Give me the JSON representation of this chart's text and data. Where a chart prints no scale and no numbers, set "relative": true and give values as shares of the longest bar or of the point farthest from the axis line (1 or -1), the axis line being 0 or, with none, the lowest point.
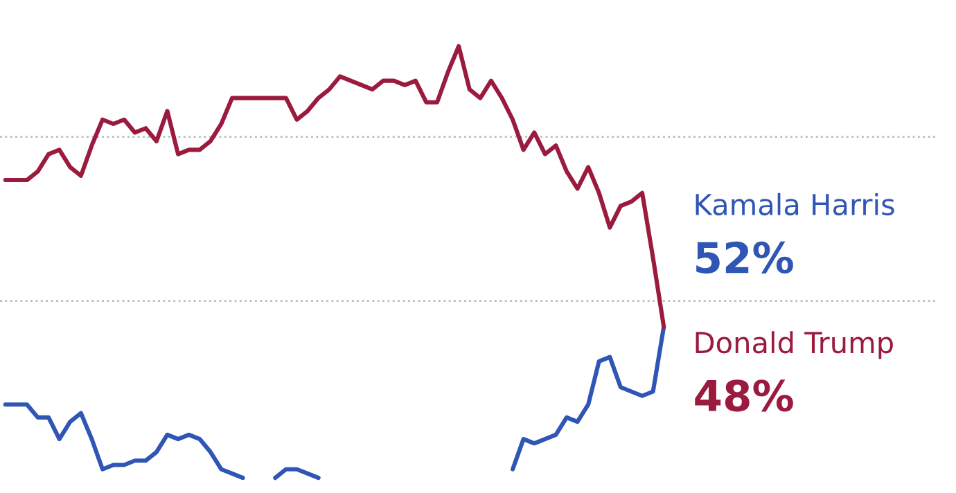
{
  "chart_data": {
    "type": "line",
    "relative": true,
    "legend": false,
    "categories": [
      null,
      null,
      null,
      null,
      null,
      null,
      null,
      null,
      null,
      null,
      null,
      null,
      null,
      null,
      null,
      null,
      null,
      null,
      null,
      null,
      null,
      null,
      null,
      null,
      null,
      null,
      null,
      null,
      null,
      null,
      null,
      null,
      null,
      null,
      null,
      null,
      null,
      null,
      null,
      null,
      null,
      null,
      null,
      null,
      null,
      null,
      null,
      null,
      null,
      null,
      null,
      null,
      null,
      null,
      null,
      null,
      null,
      null,
      null,
      null,
      null,
      null
    ],
    "series": [
      {
        "name": "Kamala Harris",
        "color": "#2f55b5",
        "values": [
          0.17,
          0.17,
          0.17,
          0.14,
          0.14,
          0.09,
          0.13,
          0.15,
          0.09,
          0.02,
          0.03,
          0.03,
          0.04,
          0.04,
          0.06,
          0.1,
          0.09,
          0.1,
          0.09,
          0.06,
          0.02,
          0.01,
          0,
          null,
          null,
          0,
          0.02,
          0.02,
          0.01,
          0,
          null,
          null,
          null,
          null,
          null,
          null,
          null,
          null,
          null,
          null,
          null,
          null,
          null,
          null,
          null,
          null,
          null,
          0.02,
          0.09,
          0.08,
          0.09,
          0.1,
          0.14,
          0.13,
          0.17,
          0.27,
          0.28,
          0.21,
          0.2,
          0.19,
          0.2,
          0.35
        ]
      },
      {
        "name": "Donald Trump",
        "color": "#9b1b3e",
        "values": [
          0.69,
          0.69,
          0.69,
          0.71,
          0.75,
          0.76,
          0.72,
          0.7,
          0.77,
          0.83,
          0.82,
          0.83,
          0.8,
          0.81,
          0.78,
          0.85,
          0.75,
          0.76,
          0.76,
          0.78,
          0.82,
          0.88,
          0.88,
          0.88,
          0.88,
          0.88,
          0.88,
          0.83,
          0.85,
          0.88,
          0.9,
          0.93,
          0.92,
          0.91,
          0.9,
          0.92,
          0.92,
          0.91,
          0.92,
          0.87,
          0.87,
          0.94,
          1,
          0.9,
          0.88,
          0.92,
          0.88,
          0.83,
          0.76,
          0.8,
          0.75,
          0.77,
          0.71,
          0.67,
          0.72,
          0.66,
          0.58,
          0.63,
          0.64,
          0.66,
          0.51,
          0.35
        ]
      }
    ],
    "annotations": [
      "52%",
      "48%"
    ],
    "ref_lines": [
      {
        "axis": "y",
        "value": 0.79,
        "color": "#bbbbbb",
        "line_style": "dotted"
      },
      {
        "axis": "y",
        "value": 0.41,
        "color": "#bbbbbb",
        "line_style": "dotted"
      }
    ]
  }
}
